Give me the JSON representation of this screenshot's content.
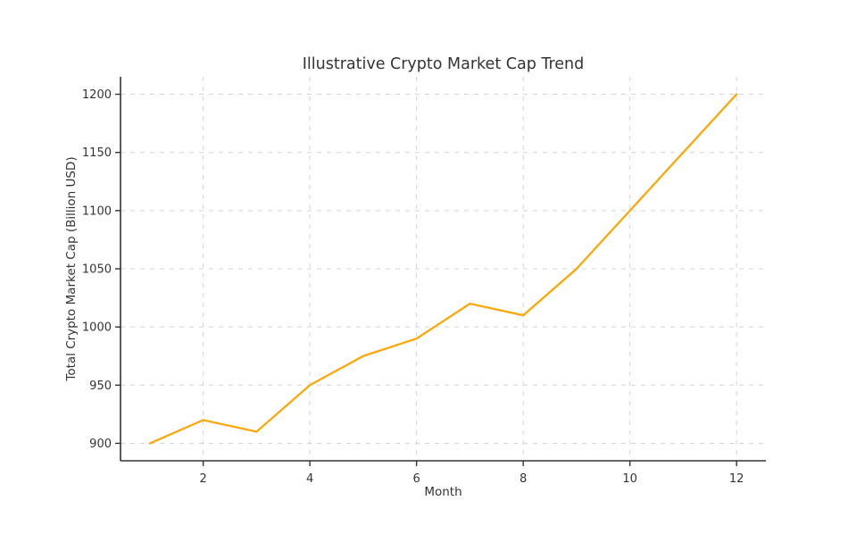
{
  "chart_data": {
    "type": "line",
    "title": "Illustrative Crypto Market Cap Trend",
    "xlabel": "Month",
    "ylabel": "Total Crypto Market Cap (Billion USD)",
    "x": [
      1,
      2,
      3,
      4,
      5,
      6,
      7,
      8,
      9,
      10,
      11,
      12
    ],
    "series": [
      {
        "name": "Total Crypto Market Cap",
        "values": [
          900,
          920,
          910,
          950,
          975,
          990,
          1020,
          1010,
          1050,
          1100,
          1150,
          1200
        ],
        "color": "#FFA500"
      }
    ],
    "xticks": [
      2,
      4,
      6,
      8,
      10,
      12
    ],
    "yticks": [
      900,
      950,
      1000,
      1050,
      1100,
      1150,
      1200
    ],
    "xlim": [
      0.45,
      12.55
    ],
    "ylim": [
      885,
      1215
    ],
    "grid": true,
    "grid_linestyle": "dashed",
    "legend_position": "none",
    "colors": {
      "line": "#FFA500",
      "grid": "#d4d4d4",
      "spine": "#333333",
      "text": "#333333",
      "background": "#ffffff"
    }
  }
}
